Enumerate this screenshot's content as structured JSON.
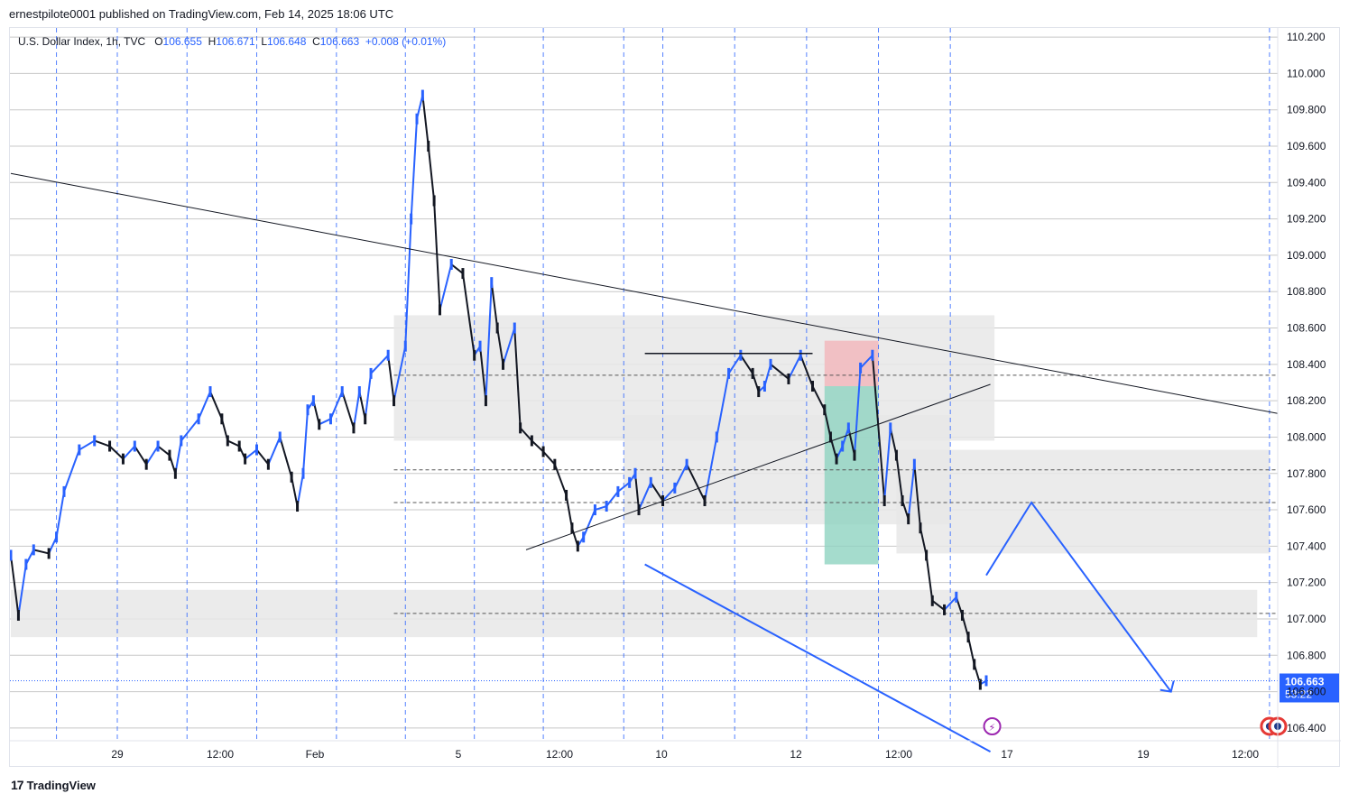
{
  "publisher_line": "ernestpilote0001 published on TradingView.com, Feb 14, 2025 18:06 UTC",
  "legend": {
    "symbol": "U.S. Dollar Index, 1h, TVC",
    "open_label": "O",
    "open": "106.655",
    "high_label": "H",
    "high": "106.671",
    "low_label": "L",
    "low": "106.648",
    "close_label": "C",
    "close": "106.663",
    "change": "+0.008 (+0.01%)"
  },
  "footer_brand": "TradingView",
  "current_price_tag": {
    "price": "106.663",
    "countdown": "53:22"
  },
  "colors": {
    "up": "#2962ff",
    "down": "#131722",
    "blue_line": "#2962ff",
    "zone": "#e8e8e8",
    "stop": "#f2b8bd",
    "target": "#8fd3c1"
  },
  "chart_data": {
    "type": "line",
    "price_axis": {
      "ticks": [
        "110.200",
        "110.000",
        "109.800",
        "109.600",
        "109.400",
        "109.200",
        "109.000",
        "108.800",
        "108.600",
        "108.400",
        "108.200",
        "108.000",
        "107.800",
        "107.600",
        "107.400",
        "107.200",
        "107.000",
        "106.800",
        "106.600",
        "106.400"
      ],
      "range": [
        106.33,
        110.25
      ]
    },
    "time_axis": {
      "ticks": [
        "29",
        "12:00",
        "Feb",
        "5",
        "12:00",
        "10",
        "12",
        "12:00",
        "17",
        "19",
        "12:00"
      ],
      "range": [
        "Jan 27 20:00",
        "Feb 20 16:00"
      ]
    },
    "series": [
      {
        "x": [
          "Jan 27 20:00",
          "Jan 27 22:00",
          "Jan 28 00:00",
          "Jan 28 02:00",
          "Jan 28 06:00",
          "Jan 28 08:00",
          "Jan 28 10:00",
          "Jan 28 14:00",
          "Jan 28 18:00",
          "Jan 28 22:00",
          "Jan 29 02:00",
          "Jan 29 06:00",
          "Jan 29 10:00",
          "Jan 29 14:00",
          "Jan 29 18:00",
          "Jan 29 20:00",
          "Jan 29 22:00",
          "Jan 30 04:00",
          "Jan 30 08:00",
          "Jan 30 12:00",
          "Jan 30 14:00",
          "Jan 30 18:00",
          "Jan 30 20:00",
          "Jan 31 00:00",
          "Jan 31 04:00",
          "Jan 31 08:00",
          "Jan 31 12:00",
          "Jan 31 14:00",
          "Jan 31 16:00",
          "Feb 02 22:00",
          "Feb 03 00:00",
          "Feb 03 02:00",
          "Feb 03 06:00",
          "Feb 03 10:00",
          "Feb 03 14:00",
          "Feb 03 16:00",
          "Feb 03 18:00",
          "Feb 03 20:00",
          "Feb 04 02:00",
          "Feb 04 04:00",
          "Feb 04 08:00",
          "Feb 04 10:00",
          "Feb 04 12:00",
          "Feb 04 14:00",
          "Feb 04 16:00",
          "Feb 04 18:00",
          "Feb 04 20:00",
          "Feb 05 00:00",
          "Feb 05 04:00",
          "Feb 05 08:00",
          "Feb 05 10:00",
          "Feb 05 12:00",
          "Feb 05 14:00",
          "Feb 05 16:00",
          "Feb 05 18:00",
          "Feb 05 22:00",
          "Feb 06 00:00",
          "Feb 06 04:00",
          "Feb 06 08:00",
          "Feb 06 12:00",
          "Feb 06 16:00",
          "Feb 06 18:00",
          "Feb 06 20:00",
          "Feb 06 22:00",
          "Feb 07 02:00",
          "Feb 07 06:00",
          "Feb 07 10:00",
          "Feb 07 14:00",
          "Feb 07 16:00",
          "Feb 09 22:00",
          "Feb 10 02:00",
          "Feb 10 06:00",
          "Feb 10 10:00",
          "Feb 10 14:00",
          "Feb 10 20:00",
          "Feb 11 00:00",
          "Feb 11 04:00",
          "Feb 11 08:00",
          "Feb 11 12:00",
          "Feb 11 14:00",
          "Feb 11 16:00",
          "Feb 11 18:00",
          "Feb 12 00:00",
          "Feb 12 04:00",
          "Feb 12 08:00",
          "Feb 12 12:00",
          "Feb 12 14:00",
          "Feb 12 16:00",
          "Feb 12 18:00",
          "Feb 12 20:00",
          "Feb 12 22:00",
          "Feb 13 00:00",
          "Feb 13 04:00",
          "Feb 13 08:00",
          "Feb 13 10:00",
          "Feb 13 12:00",
          "Feb 13 14:00",
          "Feb 13 16:00",
          "Feb 13 18:00",
          "Feb 13 20:00",
          "Feb 13 22:00",
          "Feb 14 00:00",
          "Feb 14 04:00",
          "Feb 14 08:00",
          "Feb 14 10:00",
          "Feb 14 12:00",
          "Feb 14 14:00",
          "Feb 14 16:00",
          "Feb 14 18:00"
        ],
        "values": [
          107.35,
          107.02,
          107.3,
          107.38,
          107.36,
          107.45,
          107.7,
          107.93,
          107.98,
          107.95,
          107.88,
          107.95,
          107.85,
          107.95,
          107.9,
          107.8,
          107.98,
          108.1,
          108.25,
          108.1,
          107.98,
          107.95,
          107.88,
          107.93,
          107.85,
          108.0,
          107.78,
          107.62,
          107.8,
          108.15,
          108.2,
          108.07,
          108.1,
          108.25,
          108.05,
          108.25,
          108.1,
          108.35,
          108.45,
          108.2,
          108.5,
          109.2,
          109.75,
          109.88,
          109.6,
          109.3,
          108.7,
          108.95,
          108.9,
          108.45,
          108.5,
          108.2,
          108.85,
          108.6,
          108.4,
          108.6,
          108.05,
          107.98,
          107.92,
          107.85,
          107.68,
          107.5,
          107.4,
          107.45,
          107.6,
          107.62,
          107.7,
          107.75,
          107.8,
          107.6,
          107.75,
          107.65,
          107.72,
          107.85,
          107.65,
          108.0,
          108.35,
          108.45,
          108.35,
          108.25,
          108.28,
          108.4,
          108.32,
          108.45,
          108.28,
          108.15,
          108.0,
          107.88,
          107.95,
          108.05,
          107.9,
          108.38,
          108.45,
          107.65,
          108.05,
          107.9,
          107.65,
          107.55,
          107.85,
          107.5,
          107.35,
          107.1,
          107.05,
          107.12,
          107.02,
          106.9,
          106.75,
          106.64,
          106.66
        ]
      }
    ],
    "annotations": {
      "h_levels": [
        108.34,
        107.82,
        107.64,
        107.03
      ],
      "zones": [
        {
          "from": [
            "Feb 04 04:00",
            "Feb 14 22:00"
          ],
          "price": [
            107.98,
            108.67
          ]
        },
        {
          "from": [
            "Feb 07 12:00",
            "Feb 14 06:00"
          ],
          "price": [
            107.52,
            108.12
          ]
        },
        {
          "from": [
            "Feb 13 12:00",
            "Feb 20 12:00"
          ],
          "price": [
            107.36,
            107.93
          ]
        },
        {
          "from": [
            "Jan 27 20:00",
            "Feb 20 06:00"
          ],
          "price": [
            106.9,
            107.16
          ]
        }
      ],
      "trendlines": [
        {
          "from": [
            "Jan 27 20:00",
            109.45
          ],
          "to": [
            "Feb 20 16:00",
            108.13
          ]
        },
        {
          "from": [
            "Feb 06 02:00",
            107.38
          ],
          "to": [
            "Feb 14 20:00",
            108.29
          ]
        }
      ],
      "resistance_line": {
        "from": "Feb 10 00:00",
        "to": "Feb 12 08:00",
        "price": 108.46
      },
      "position": {
        "from": "Feb 12 12:00",
        "to": "Feb 13 06:00",
        "entry": 108.28,
        "stop": 108.53,
        "target": 107.3
      },
      "projection": [
        [
          "Feb 14 18:00",
          107.24
        ],
        [
          "Feb 15 16:00",
          107.64
        ],
        [
          "Feb 18 12:00",
          106.6
        ]
      ],
      "wedge_lower": [
        [
          "Feb 10 00:00",
          107.3
        ],
        [
          "Feb 14 20:00",
          106.27
        ]
      ]
    }
  }
}
